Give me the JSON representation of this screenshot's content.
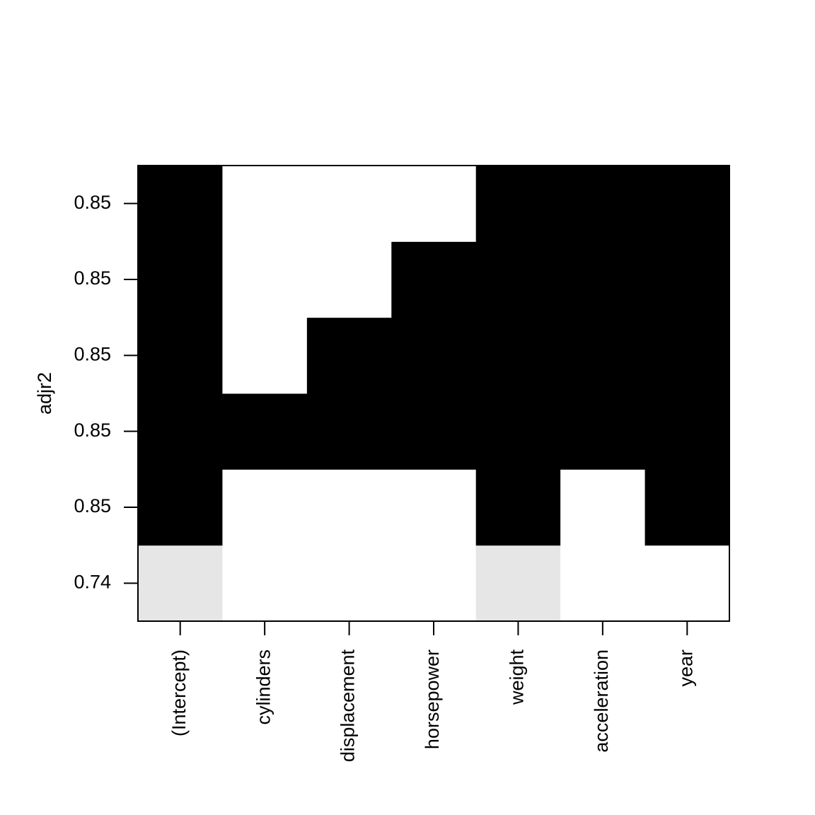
{
  "chart_data": {
    "type": "heatmap",
    "ylabel": "adjr2",
    "categories": [
      "(Intercept)",
      "cylinders",
      "displacement",
      "horsepower",
      "weight",
      "acceleration",
      "year"
    ],
    "empty_color": "#ffffff",
    "rows": [
      {
        "label": 0.74,
        "color": "#e6e6e6",
        "values": [
          1,
          0,
          0,
          0,
          1,
          0,
          0
        ]
      },
      {
        "label": 0.85,
        "color": "#000000",
        "values": [
          1,
          0,
          0,
          0,
          1,
          0,
          1
        ]
      },
      {
        "label": 0.85,
        "color": "#000000",
        "values": [
          1,
          1,
          1,
          1,
          1,
          1,
          1
        ]
      },
      {
        "label": 0.85,
        "color": "#000000",
        "values": [
          1,
          0,
          1,
          1,
          1,
          1,
          1
        ]
      },
      {
        "label": 0.85,
        "color": "#000000",
        "values": [
          1,
          0,
          0,
          1,
          1,
          1,
          1
        ]
      },
      {
        "label": 0.85,
        "color": "#000000",
        "values": [
          1,
          0,
          0,
          0,
          1,
          1,
          1
        ]
      }
    ]
  }
}
